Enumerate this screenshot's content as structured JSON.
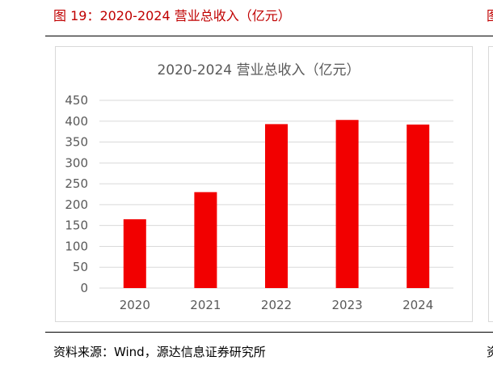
{
  "figure": {
    "caption": "图 19：2020-2024 营业总收入（亿元）",
    "next_caption_fragment": "图",
    "source": "资料来源：Wind，源达信息证券研究所",
    "next_source_fragment": "资"
  },
  "colors": {
    "bar": "#f20000",
    "grid": "#d9d9d9",
    "caption": "#c00000",
    "axis_text": "#595959"
  },
  "chart_data": {
    "type": "bar",
    "title": "2020-2024 营业总收入（亿元）",
    "categories": [
      "2020",
      "2021",
      "2022",
      "2023",
      "2024"
    ],
    "values": [
      165,
      230,
      393,
      403,
      392
    ],
    "ylim": [
      0,
      450
    ],
    "yticks": [
      0,
      50,
      100,
      150,
      200,
      250,
      300,
      350,
      400,
      450
    ],
    "xlabel": "",
    "ylabel": "",
    "grid": true,
    "legend": "none"
  }
}
